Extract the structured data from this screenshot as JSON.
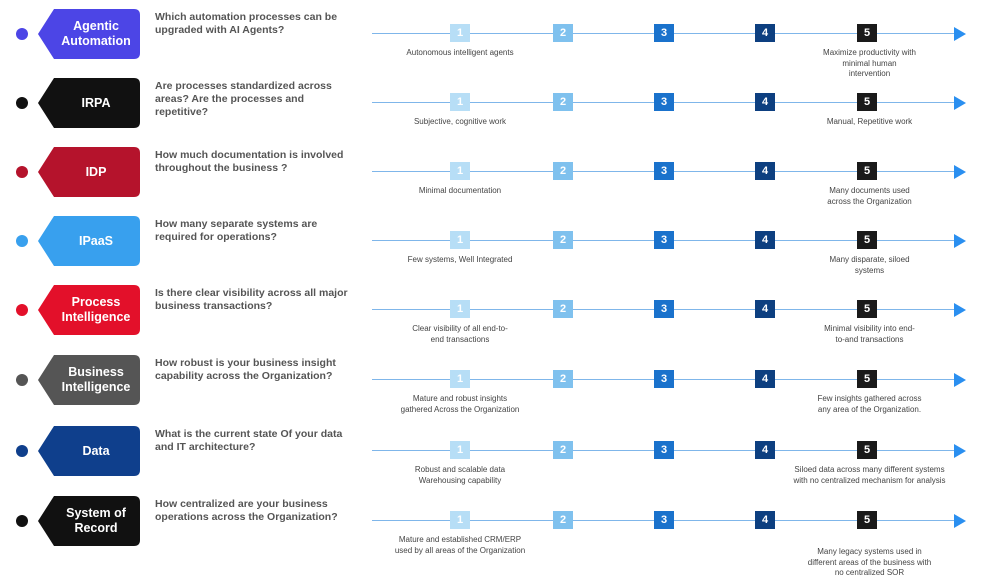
{
  "rows": [
    {
      "tag": "Agentic\nAutomation",
      "question": "Which automation processes can be upgraded with AI Agents?",
      "left_desc": "Autonomous intelligent agents",
      "right_desc": "Maximize productivity with\nminimal human\nintervention",
      "color": "#4c45e6"
    },
    {
      "tag": "IRPA",
      "question": "Are processes standardized across areas? Are the processes and repetitive?",
      "left_desc": "Subjective, cognitive work",
      "right_desc": "Manual, Repetitive work",
      "color": "#111111"
    },
    {
      "tag": "IDP",
      "question": "How much documentation is involved throughout the business ?",
      "left_desc": "Minimal documentation",
      "right_desc": "Many documents used\nacross the Organization",
      "color": "#b5132c"
    },
    {
      "tag": "IPaaS",
      "question": "How many separate systems are required for operations?",
      "left_desc": "Few systems, Well Integrated",
      "right_desc": "Many disparate, siloed\nsystems",
      "color": "#38a0ee"
    },
    {
      "tag": "Process\nIntelligence",
      "question": "Is there clear visibility across all major business transactions?",
      "left_desc": "Clear visibility of all end-to-\nend transactions",
      "right_desc": "Minimal visibility into end-\nto-and transactions",
      "color": "#e3102a"
    },
    {
      "tag": "Business\nIntelligence",
      "question": "How robust is your business insight capability across the Organization?",
      "left_desc": "Mature and robust insights\ngathered Across the Organization",
      "right_desc": "Few insights gathered across\nany area of the Organization.",
      "color": "#555555"
    },
    {
      "tag": "Data",
      "question": "What is the current state Of your data and IT architecture?",
      "left_desc": "Robust and scalable data\nWarehousing capability",
      "right_desc": "Siloed data across many different systems\nwith no centralized mechanism for analysis",
      "color": "#0f3f8c"
    },
    {
      "tag": "System of\nRecord",
      "question": "How centralized are your business operations across the Organization?",
      "left_desc": "Mature and established CRM/ERP\nused by all areas of the Organization",
      "right_desc": "Many legacy systems used in\ndifferent areas of the business with\nno centralized SOR",
      "color": "#111111"
    }
  ],
  "steps": [
    "1",
    "2",
    "3",
    "4",
    "5"
  ]
}
